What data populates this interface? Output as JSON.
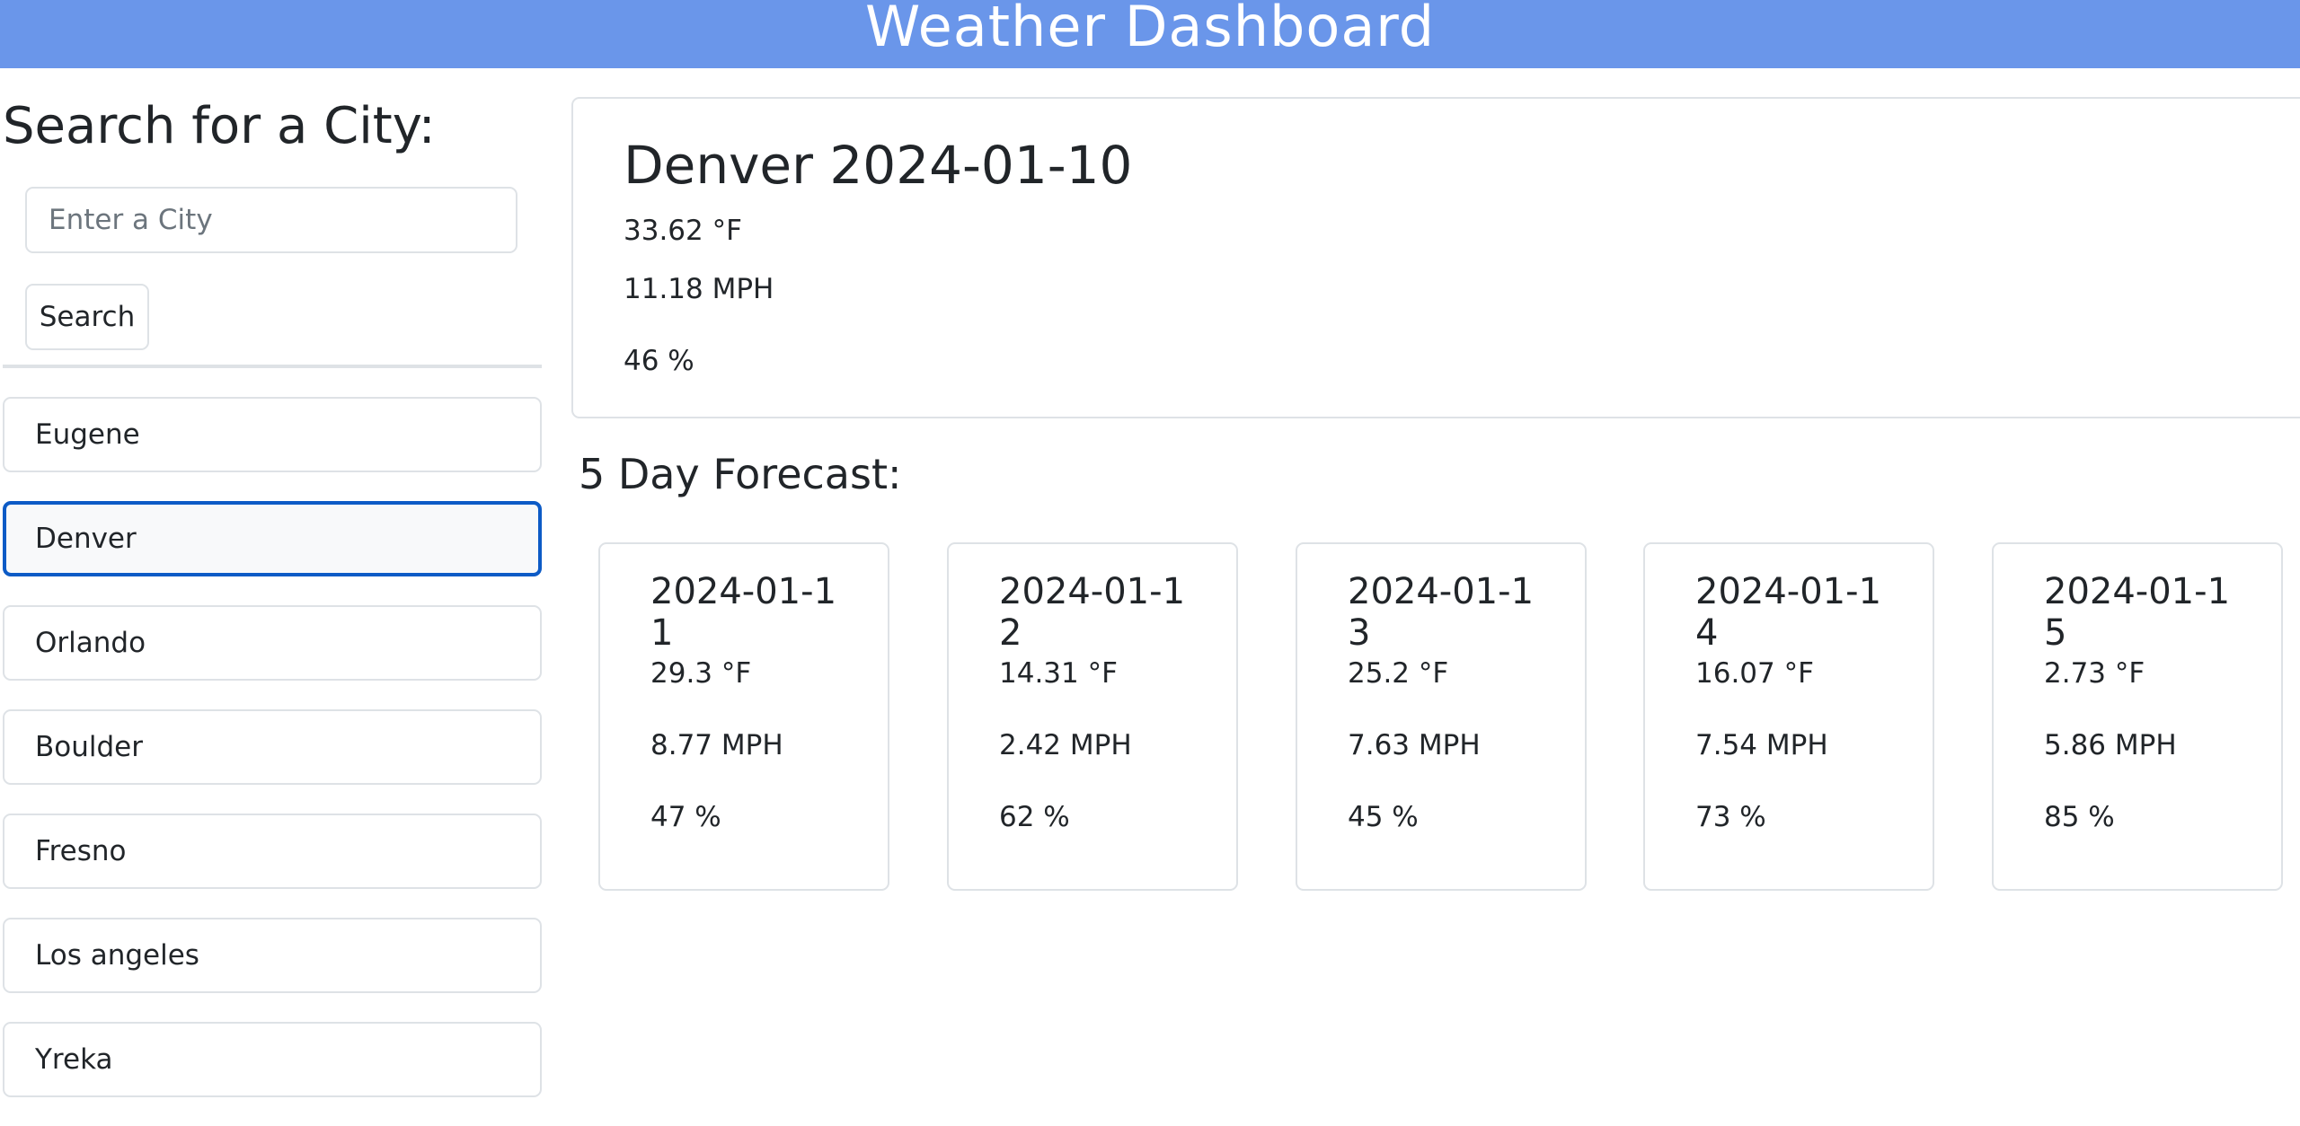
{
  "header": {
    "title": "Weather Dashboard"
  },
  "search": {
    "heading": "Search for a City:",
    "placeholder": "Enter a City",
    "value": "",
    "button_label": "Search"
  },
  "history": [
    {
      "label": "Eugene",
      "active": false
    },
    {
      "label": "Denver",
      "active": true
    },
    {
      "label": "Orlando",
      "active": false
    },
    {
      "label": "Boulder",
      "active": false
    },
    {
      "label": "Fresno",
      "active": false
    },
    {
      "label": "Los angeles",
      "active": false
    },
    {
      "label": "Yreka",
      "active": false
    }
  ],
  "current": {
    "title": "Denver 2024-01-10",
    "temp": "33.62 °F",
    "wind": "11.18 MPH",
    "humidity": "46 %"
  },
  "forecast": {
    "heading": "5 Day Forecast:",
    "days": [
      {
        "date": "2024-01-11",
        "temp": "29.3 °F",
        "wind": "8.77 MPH",
        "humidity": "47 %"
      },
      {
        "date": "2024-01-12",
        "temp": "14.31 °F",
        "wind": "2.42 MPH",
        "humidity": "62 %"
      },
      {
        "date": "2024-01-13",
        "temp": "25.2 °F",
        "wind": "7.63 MPH",
        "humidity": "45 %"
      },
      {
        "date": "2024-01-14",
        "temp": "16.07 °F",
        "wind": "7.54 MPH",
        "humidity": "73 %"
      },
      {
        "date": "2024-01-15",
        "temp": "2.73 °F",
        "wind": "5.86 MPH",
        "humidity": "85 %"
      }
    ]
  },
  "colors": {
    "header_bg": "#6a96ea",
    "active_border": "#0d5bc6",
    "card_border": "#dee2e6"
  }
}
